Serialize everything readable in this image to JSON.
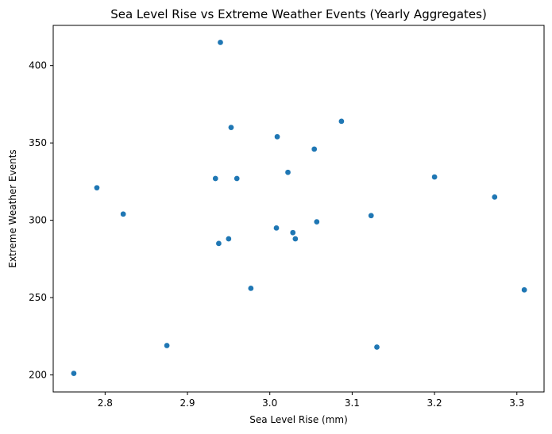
{
  "chart_data": {
    "type": "scatter",
    "title": "Sea Level Rise vs Extreme Weather Events (Yearly Aggregates)",
    "xlabel": "Sea Level Rise (mm)",
    "ylabel": "Extreme Weather Events",
    "xlim": [
      2.737,
      3.333
    ],
    "ylim": [
      189,
      426
    ],
    "xticks": [
      2.8,
      2.9,
      3.0,
      3.1,
      3.2,
      3.3
    ],
    "xtick_labels": [
      "2.8",
      "2.9",
      "3.0",
      "3.1",
      "3.2",
      "3.3"
    ],
    "yticks": [
      200,
      250,
      300,
      350,
      400
    ],
    "ytick_labels": [
      "200",
      "250",
      "300",
      "350",
      "400"
    ],
    "grid": false,
    "marker_color": "#1f77b4",
    "points": [
      {
        "x": 2.762,
        "y": 201
      },
      {
        "x": 2.79,
        "y": 321
      },
      {
        "x": 2.822,
        "y": 304
      },
      {
        "x": 2.875,
        "y": 219
      },
      {
        "x": 2.934,
        "y": 327
      },
      {
        "x": 2.938,
        "y": 285
      },
      {
        "x": 2.94,
        "y": 415
      },
      {
        "x": 2.95,
        "y": 288
      },
      {
        "x": 2.953,
        "y": 360
      },
      {
        "x": 2.96,
        "y": 327
      },
      {
        "x": 2.977,
        "y": 256
      },
      {
        "x": 3.008,
        "y": 295
      },
      {
        "x": 3.009,
        "y": 354
      },
      {
        "x": 3.022,
        "y": 331
      },
      {
        "x": 3.028,
        "y": 292
      },
      {
        "x": 3.031,
        "y": 288
      },
      {
        "x": 3.054,
        "y": 346
      },
      {
        "x": 3.057,
        "y": 299
      },
      {
        "x": 3.087,
        "y": 364
      },
      {
        "x": 3.123,
        "y": 303
      },
      {
        "x": 3.13,
        "y": 218
      },
      {
        "x": 3.2,
        "y": 328
      },
      {
        "x": 3.273,
        "y": 315
      },
      {
        "x": 3.309,
        "y": 255
      }
    ]
  }
}
